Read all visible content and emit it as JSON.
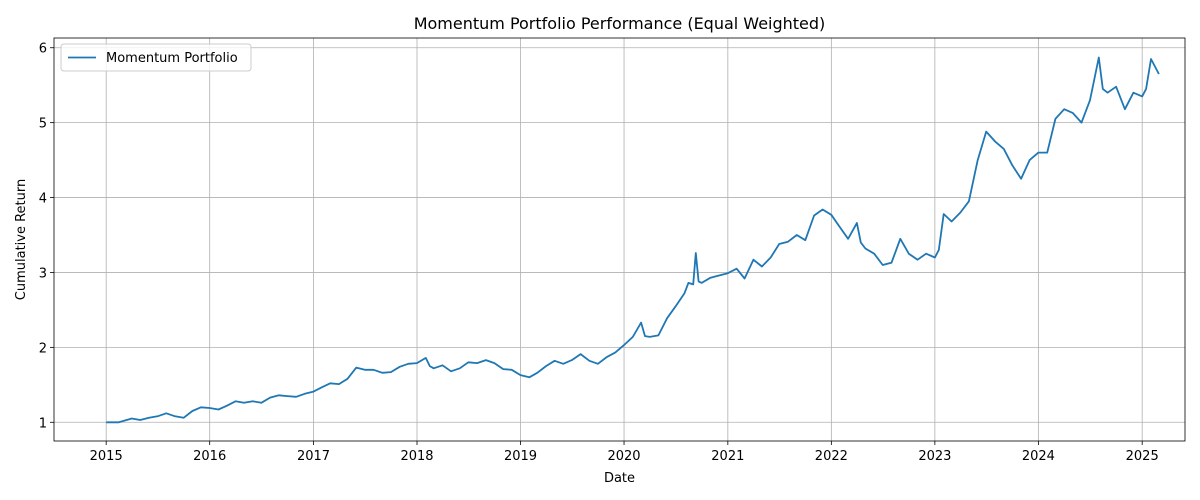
{
  "chart_data": {
    "type": "line",
    "title": "Momentum Portfolio Performance (Equal Weighted)",
    "xlabel": "Date",
    "ylabel": "Cumulative Return",
    "xlim": [
      "2014-07-01",
      "2025-06-01"
    ],
    "ylim": [
      0.75,
      6.13
    ],
    "x_ticks": [
      "2015",
      "2016",
      "2017",
      "2018",
      "2019",
      "2020",
      "2021",
      "2022",
      "2023",
      "2024",
      "2025"
    ],
    "y_ticks": [
      1,
      2,
      3,
      4,
      5,
      6
    ],
    "grid": true,
    "legend": "upper-left",
    "series": [
      {
        "name": "Momentum Portfolio",
        "color": "#1f77b4",
        "points": [
          [
            "2015-01-01",
            1.0
          ],
          [
            "2015-02-15",
            1.0
          ],
          [
            "2015-04-01",
            1.05
          ],
          [
            "2015-05-01",
            1.03
          ],
          [
            "2015-06-01",
            1.06
          ],
          [
            "2015-07-01",
            1.08
          ],
          [
            "2015-08-01",
            1.12
          ],
          [
            "2015-09-01",
            1.08
          ],
          [
            "2015-10-01",
            1.06
          ],
          [
            "2015-11-01",
            1.15
          ],
          [
            "2015-12-01",
            1.2
          ],
          [
            "2016-01-01",
            1.19
          ],
          [
            "2016-02-01",
            1.17
          ],
          [
            "2016-03-01",
            1.22
          ],
          [
            "2016-04-01",
            1.28
          ],
          [
            "2016-05-01",
            1.26
          ],
          [
            "2016-06-01",
            1.28
          ],
          [
            "2016-07-01",
            1.26
          ],
          [
            "2016-08-01",
            1.33
          ],
          [
            "2016-09-01",
            1.36
          ],
          [
            "2016-10-01",
            1.35
          ],
          [
            "2016-11-01",
            1.34
          ],
          [
            "2016-12-01",
            1.38
          ],
          [
            "2017-01-01",
            1.41
          ],
          [
            "2017-02-01",
            1.47
          ],
          [
            "2017-03-01",
            1.52
          ],
          [
            "2017-04-01",
            1.51
          ],
          [
            "2017-05-01",
            1.58
          ],
          [
            "2017-06-01",
            1.73
          ],
          [
            "2017-07-01",
            1.7
          ],
          [
            "2017-08-01",
            1.7
          ],
          [
            "2017-09-01",
            1.66
          ],
          [
            "2017-10-01",
            1.67
          ],
          [
            "2017-11-01",
            1.74
          ],
          [
            "2017-12-01",
            1.78
          ],
          [
            "2018-01-01",
            1.79
          ],
          [
            "2018-02-01",
            1.86
          ],
          [
            "2018-02-15",
            1.75
          ],
          [
            "2018-03-01",
            1.72
          ],
          [
            "2018-04-01",
            1.76
          ],
          [
            "2018-05-01",
            1.68
          ],
          [
            "2018-06-01",
            1.72
          ],
          [
            "2018-07-01",
            1.8
          ],
          [
            "2018-08-01",
            1.79
          ],
          [
            "2018-09-01",
            1.83
          ],
          [
            "2018-10-01",
            1.79
          ],
          [
            "2018-11-01",
            1.71
          ],
          [
            "2018-12-01",
            1.7
          ],
          [
            "2019-01-01",
            1.63
          ],
          [
            "2019-02-01",
            1.6
          ],
          [
            "2019-03-01",
            1.66
          ],
          [
            "2019-04-01",
            1.75
          ],
          [
            "2019-05-01",
            1.82
          ],
          [
            "2019-06-01",
            1.78
          ],
          [
            "2019-07-01",
            1.83
          ],
          [
            "2019-08-01",
            1.91
          ],
          [
            "2019-09-01",
            1.82
          ],
          [
            "2019-10-01",
            1.78
          ],
          [
            "2019-11-01",
            1.87
          ],
          [
            "2019-12-01",
            1.93
          ],
          [
            "2020-01-01",
            2.03
          ],
          [
            "2020-02-01",
            2.14
          ],
          [
            "2020-03-01",
            2.33
          ],
          [
            "2020-03-15",
            2.15
          ],
          [
            "2020-04-01",
            2.14
          ],
          [
            "2020-05-01",
            2.16
          ],
          [
            "2020-06-01",
            2.39
          ],
          [
            "2020-07-01",
            2.55
          ],
          [
            "2020-08-01",
            2.72
          ],
          [
            "2020-08-15",
            2.86
          ],
          [
            "2020-09-01",
            2.84
          ],
          [
            "2020-09-10",
            3.26
          ],
          [
            "2020-09-20",
            2.88
          ],
          [
            "2020-10-01",
            2.86
          ],
          [
            "2020-11-01",
            2.93
          ],
          [
            "2020-12-01",
            2.96
          ],
          [
            "2021-01-01",
            2.99
          ],
          [
            "2021-02-01",
            3.05
          ],
          [
            "2021-03-01",
            2.92
          ],
          [
            "2021-04-01",
            3.17
          ],
          [
            "2021-05-01",
            3.08
          ],
          [
            "2021-06-01",
            3.2
          ],
          [
            "2021-07-01",
            3.38
          ],
          [
            "2021-08-01",
            3.41
          ],
          [
            "2021-09-01",
            3.5
          ],
          [
            "2021-10-01",
            3.43
          ],
          [
            "2021-11-01",
            3.76
          ],
          [
            "2021-12-01",
            3.84
          ],
          [
            "2022-01-01",
            3.77
          ],
          [
            "2022-02-01",
            3.6
          ],
          [
            "2022-03-01",
            3.45
          ],
          [
            "2022-04-01",
            3.66
          ],
          [
            "2022-04-15",
            3.4
          ],
          [
            "2022-05-01",
            3.32
          ],
          [
            "2022-06-01",
            3.25
          ],
          [
            "2022-07-01",
            3.1
          ],
          [
            "2022-08-01",
            3.13
          ],
          [
            "2022-09-01",
            3.45
          ],
          [
            "2022-10-01",
            3.25
          ],
          [
            "2022-11-01",
            3.17
          ],
          [
            "2022-12-01",
            3.25
          ],
          [
            "2023-01-01",
            3.2
          ],
          [
            "2023-01-15",
            3.3
          ],
          [
            "2023-02-01",
            3.78
          ],
          [
            "2023-03-01",
            3.68
          ],
          [
            "2023-04-01",
            3.8
          ],
          [
            "2023-05-01",
            3.95
          ],
          [
            "2023-06-01",
            4.5
          ],
          [
            "2023-07-01",
            4.88
          ],
          [
            "2023-08-01",
            4.75
          ],
          [
            "2023-09-01",
            4.65
          ],
          [
            "2023-10-01",
            4.43
          ],
          [
            "2023-11-01",
            4.25
          ],
          [
            "2023-12-01",
            4.5
          ],
          [
            "2024-01-01",
            4.6
          ],
          [
            "2024-02-01",
            4.6
          ],
          [
            "2024-03-01",
            5.05
          ],
          [
            "2024-04-01",
            5.18
          ],
          [
            "2024-05-01",
            5.13
          ],
          [
            "2024-06-01",
            5.0
          ],
          [
            "2024-07-01",
            5.3
          ],
          [
            "2024-08-01",
            5.87
          ],
          [
            "2024-08-15",
            5.45
          ],
          [
            "2024-09-01",
            5.4
          ],
          [
            "2024-10-01",
            5.48
          ],
          [
            "2024-11-01",
            5.18
          ],
          [
            "2024-12-01",
            5.4
          ],
          [
            "2025-01-01",
            5.35
          ],
          [
            "2025-01-15",
            5.45
          ],
          [
            "2025-02-01",
            5.85
          ],
          [
            "2025-03-01",
            5.65
          ]
        ]
      }
    ]
  }
}
